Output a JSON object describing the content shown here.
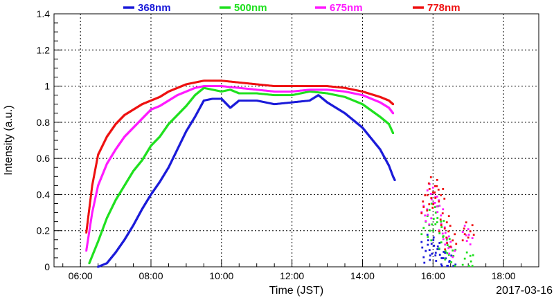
{
  "chart_data": {
    "type": "scatter",
    "title": "",
    "xlabel": "Time (JST)",
    "ylabel": "Intensity (a.u.)",
    "date_label": "2017-03-16",
    "xlim": [
      "05:15",
      "19:00"
    ],
    "ylim": [
      0,
      1.4
    ],
    "x_ticks": [
      "06:00",
      "08:00",
      "10:00",
      "12:00",
      "14:00",
      "16:00",
      "18:00"
    ],
    "y_ticks": [
      "0",
      "0.2",
      "0.4",
      "0.6",
      "0.8",
      "1",
      "1.2",
      "1.4"
    ],
    "grid": true,
    "legend_position": "top",
    "series": [
      {
        "name": "368nm",
        "color": "#1a1ad9",
        "points": [
          [
            "06:30",
            0.0
          ],
          [
            "06:45",
            0.02
          ],
          [
            "07:00",
            0.08
          ],
          [
            "07:15",
            0.15
          ],
          [
            "07:30",
            0.23
          ],
          [
            "07:45",
            0.32
          ],
          [
            "08:00",
            0.4
          ],
          [
            "08:15",
            0.47
          ],
          [
            "08:30",
            0.55
          ],
          [
            "08:45",
            0.65
          ],
          [
            "09:00",
            0.75
          ],
          [
            "09:15",
            0.83
          ],
          [
            "09:30",
            0.92
          ],
          [
            "09:45",
            0.93
          ],
          [
            "10:00",
            0.93
          ],
          [
            "10:15",
            0.88
          ],
          [
            "10:30",
            0.92
          ],
          [
            "11:00",
            0.92
          ],
          [
            "11:30",
            0.9
          ],
          [
            "12:00",
            0.91
          ],
          [
            "12:30",
            0.92
          ],
          [
            "12:45",
            0.95
          ],
          [
            "13:00",
            0.91
          ],
          [
            "13:30",
            0.85
          ],
          [
            "14:00",
            0.77
          ],
          [
            "14:30",
            0.65
          ],
          [
            "14:45",
            0.56
          ],
          [
            "14:52",
            0.5
          ],
          [
            "14:55",
            0.48
          ],
          [
            "15:50",
            0.08
          ],
          [
            "16:00",
            0.12
          ],
          [
            "16:10",
            0.09
          ],
          [
            "16:20",
            0.04
          ],
          [
            "16:30",
            0.02
          ]
        ]
      },
      {
        "name": "500nm",
        "color": "#1fe01f",
        "points": [
          [
            "06:15",
            0.02
          ],
          [
            "06:30",
            0.14
          ],
          [
            "06:45",
            0.27
          ],
          [
            "07:00",
            0.37
          ],
          [
            "07:15",
            0.45
          ],
          [
            "07:30",
            0.53
          ],
          [
            "07:45",
            0.59
          ],
          [
            "08:00",
            0.67
          ],
          [
            "08:15",
            0.72
          ],
          [
            "08:30",
            0.79
          ],
          [
            "08:45",
            0.84
          ],
          [
            "09:00",
            0.89
          ],
          [
            "09:15",
            0.95
          ],
          [
            "09:30",
            0.99
          ],
          [
            "10:00",
            0.97
          ],
          [
            "10:15",
            0.98
          ],
          [
            "10:30",
            0.96
          ],
          [
            "11:00",
            0.96
          ],
          [
            "11:30",
            0.95
          ],
          [
            "12:00",
            0.95
          ],
          [
            "12:30",
            0.97
          ],
          [
            "13:00",
            0.96
          ],
          [
            "13:30",
            0.94
          ],
          [
            "14:00",
            0.9
          ],
          [
            "14:30",
            0.83
          ],
          [
            "14:45",
            0.79
          ],
          [
            "14:52",
            0.74
          ],
          [
            "15:50",
            0.2
          ],
          [
            "16:00",
            0.3
          ],
          [
            "16:10",
            0.22
          ],
          [
            "16:20",
            0.12
          ],
          [
            "16:30",
            0.06
          ],
          [
            "17:00",
            0.03
          ]
        ]
      },
      {
        "name": "675nm",
        "color": "#ff1aff",
        "points": [
          [
            "06:10",
            0.09
          ],
          [
            "06:20",
            0.3
          ],
          [
            "06:30",
            0.45
          ],
          [
            "06:45",
            0.57
          ],
          [
            "07:00",
            0.65
          ],
          [
            "07:15",
            0.72
          ],
          [
            "07:30",
            0.77
          ],
          [
            "07:45",
            0.82
          ],
          [
            "08:00",
            0.87
          ],
          [
            "08:15",
            0.89
          ],
          [
            "08:30",
            0.92
          ],
          [
            "08:45",
            0.95
          ],
          [
            "09:00",
            0.97
          ],
          [
            "09:15",
            0.99
          ],
          [
            "09:30",
            1.0
          ],
          [
            "10:00",
            1.0
          ],
          [
            "10:30",
            0.99
          ],
          [
            "11:00",
            0.98
          ],
          [
            "11:30",
            0.97
          ],
          [
            "12:00",
            0.97
          ],
          [
            "12:30",
            0.98
          ],
          [
            "13:00",
            0.98
          ],
          [
            "13:30",
            0.97
          ],
          [
            "14:00",
            0.95
          ],
          [
            "14:30",
            0.91
          ],
          [
            "14:45",
            0.88
          ],
          [
            "14:52",
            0.85
          ],
          [
            "15:50",
            0.28
          ],
          [
            "16:00",
            0.4
          ],
          [
            "16:10",
            0.33
          ],
          [
            "16:20",
            0.18
          ],
          [
            "16:30",
            0.1
          ],
          [
            "17:00",
            0.17
          ]
        ]
      },
      {
        "name": "778nm",
        "color": "#ee1111",
        "points": [
          [
            "06:10",
            0.19
          ],
          [
            "06:20",
            0.45
          ],
          [
            "06:30",
            0.62
          ],
          [
            "06:45",
            0.72
          ],
          [
            "07:00",
            0.79
          ],
          [
            "07:15",
            0.84
          ],
          [
            "07:30",
            0.87
          ],
          [
            "07:45",
            0.9
          ],
          [
            "08:00",
            0.92
          ],
          [
            "08:15",
            0.94
          ],
          [
            "08:30",
            0.97
          ],
          [
            "08:45",
            0.99
          ],
          [
            "09:00",
            1.01
          ],
          [
            "09:15",
            1.02
          ],
          [
            "09:30",
            1.03
          ],
          [
            "10:00",
            1.03
          ],
          [
            "10:30",
            1.02
          ],
          [
            "11:00",
            1.01
          ],
          [
            "11:30",
            1.0
          ],
          [
            "12:00",
            1.0
          ],
          [
            "12:30",
            1.0
          ],
          [
            "13:00",
            1.0
          ],
          [
            "13:30",
            0.99
          ],
          [
            "14:00",
            0.97
          ],
          [
            "14:30",
            0.94
          ],
          [
            "14:45",
            0.92
          ],
          [
            "14:52",
            0.9
          ],
          [
            "15:50",
            0.35
          ],
          [
            "16:00",
            0.45
          ],
          [
            "16:10",
            0.4
          ],
          [
            "16:20",
            0.25
          ],
          [
            "16:30",
            0.15
          ],
          [
            "17:00",
            0.2
          ]
        ]
      }
    ]
  }
}
